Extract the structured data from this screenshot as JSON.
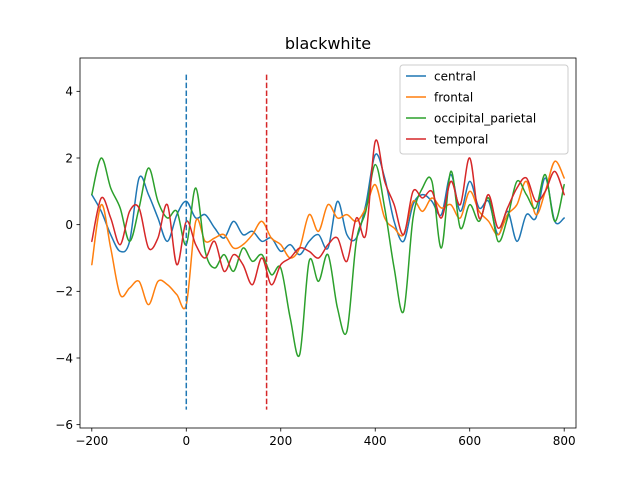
{
  "chart_data": {
    "type": "line",
    "title": "blackwhite",
    "xlabel": "",
    "ylabel": "",
    "xlim": [
      -225,
      825
    ],
    "ylim": [
      -6.1,
      5.0
    ],
    "xticks": [
      -200,
      0,
      200,
      400,
      600,
      800
    ],
    "yticks": [
      -6,
      -4,
      -2,
      0,
      2,
      4
    ],
    "legend_position": "upper right",
    "grid": false,
    "vlines": [
      {
        "x": 0,
        "ymin": -5.55,
        "ymax": 4.5,
        "color": "#1f77b4",
        "style": "dashed"
      },
      {
        "x": 170,
        "ymin": -5.55,
        "ymax": 4.5,
        "color": "#d62728",
        "style": "dashed"
      }
    ],
    "x": [
      -200,
      -180,
      -160,
      -140,
      -120,
      -100,
      -80,
      -60,
      -40,
      -20,
      0,
      20,
      40,
      60,
      80,
      100,
      120,
      140,
      160,
      180,
      200,
      220,
      240,
      260,
      280,
      300,
      320,
      340,
      360,
      380,
      400,
      420,
      440,
      460,
      480,
      500,
      520,
      540,
      560,
      580,
      600,
      620,
      640,
      660,
      680,
      700,
      720,
      740,
      760,
      780,
      800
    ],
    "series": [
      {
        "name": "central",
        "color": "#1f77b4",
        "values": [
          0.9,
          0.4,
          -0.3,
          -0.8,
          -0.5,
          1.4,
          0.9,
          0.2,
          -0.5,
          0.3,
          0.7,
          0.2,
          0.3,
          -0.1,
          -0.4,
          0.1,
          -0.3,
          -0.2,
          -0.5,
          -0.4,
          -0.8,
          -0.6,
          -0.9,
          -0.5,
          -0.3,
          -0.7,
          0.7,
          -0.3,
          -0.4,
          0.6,
          2.1,
          1.4,
          0.1,
          -0.5,
          0.6,
          0.9,
          0.7,
          0.3,
          1.5,
          0.4,
          1.3,
          0.5,
          0.7,
          -0.3,
          0.4,
          -0.5,
          0.3,
          0.2,
          1.4,
          0.1,
          0.2
        ]
      },
      {
        "name": "frontal",
        "color": "#ff7f0e",
        "values": [
          -1.2,
          0.6,
          -0.7,
          -2.1,
          -1.9,
          -1.7,
          -2.4,
          -1.7,
          -1.8,
          -2.1,
          -2.4,
          0.1,
          -0.5,
          -0.4,
          -0.3,
          -0.7,
          -0.6,
          -0.3,
          0.1,
          -0.4,
          -0.6,
          -1.0,
          -0.7,
          0.3,
          -0.2,
          0.6,
          0.2,
          0.3,
          0.1,
          0.5,
          1.2,
          0.2,
          -0.1,
          -0.3,
          0.7,
          0.4,
          0.8,
          0.5,
          0.6,
          0.2,
          1.0,
          0.4,
          0.1,
          -0.3,
          0.3,
          0.6,
          1.3,
          0.3,
          1.0,
          1.9,
          1.4
        ]
      },
      {
        "name": "occipital_parietal",
        "color": "#2ca02c",
        "values": [
          0.9,
          2.0,
          1.1,
          0.5,
          -0.5,
          0.5,
          1.7,
          0.7,
          0.2,
          0.4,
          -0.6,
          1.1,
          -0.8,
          -1.3,
          -0.9,
          -1.4,
          -0.7,
          -1.1,
          -0.9,
          -1.5,
          -1.3,
          -2.8,
          -3.9,
          -1.1,
          -1.7,
          -0.9,
          -2.5,
          -3.2,
          -0.5,
          0.4,
          1.8,
          0.5,
          -1.3,
          -2.6,
          0.2,
          1.1,
          1.3,
          -0.7,
          1.6,
          -0.1,
          0.6,
          0.1,
          0.8,
          -0.5,
          0.2,
          1.3,
          0.9,
          0.5,
          1.5,
          0.1,
          1.2
        ]
      },
      {
        "name": "temporal",
        "color": "#d62728",
        "values": [
          -0.5,
          0.8,
          0.2,
          -0.6,
          0.4,
          0.5,
          -0.7,
          -0.4,
          0.6,
          -1.2,
          0.1,
          -0.6,
          -1.0,
          -0.5,
          -1.4,
          -0.9,
          -1.2,
          -1.8,
          -1.0,
          -1.8,
          -1.2,
          -1.0,
          -0.7,
          -0.8,
          -1.0,
          -0.6,
          -0.4,
          -1.1,
          0.2,
          -0.3,
          2.5,
          1.3,
          0.6,
          -0.3,
          1.0,
          0.8,
          1.0,
          0.2,
          1.3,
          0.6,
          2.0,
          0.2,
          0.9,
          -0.1,
          0.5,
          1.1,
          1.4,
          0.7,
          1.0,
          1.6,
          0.9
        ]
      }
    ]
  }
}
